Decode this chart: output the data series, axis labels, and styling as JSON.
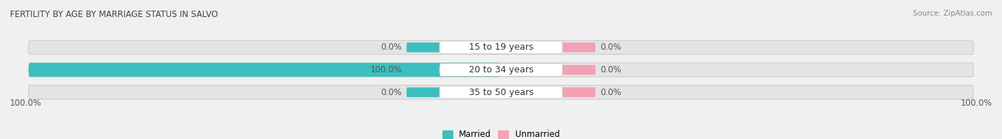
{
  "title": "FERTILITY BY AGE BY MARRIAGE STATUS IN SALVO",
  "source": "Source: ZipAtlas.com",
  "categories": [
    "15 to 19 years",
    "20 to 34 years",
    "35 to 50 years"
  ],
  "married_values": [
    0.0,
    100.0,
    0.0
  ],
  "unmarried_values": [
    0.0,
    0.0,
    0.0
  ],
  "married_color": "#3bbfbf",
  "unmarried_color": "#f4a0b5",
  "bar_bg_color": "#e4e4e4",
  "title_fontsize": 8.5,
  "source_fontsize": 7.5,
  "label_fontsize": 8.5,
  "category_fontsize": 9,
  "left_axis_label": "100.0%",
  "right_axis_label": "100.0%",
  "legend_married": "Married",
  "legend_unmarried": "Unmarried",
  "background_color": "#f0f0f0",
  "bar_frame_color": "#cccccc"
}
